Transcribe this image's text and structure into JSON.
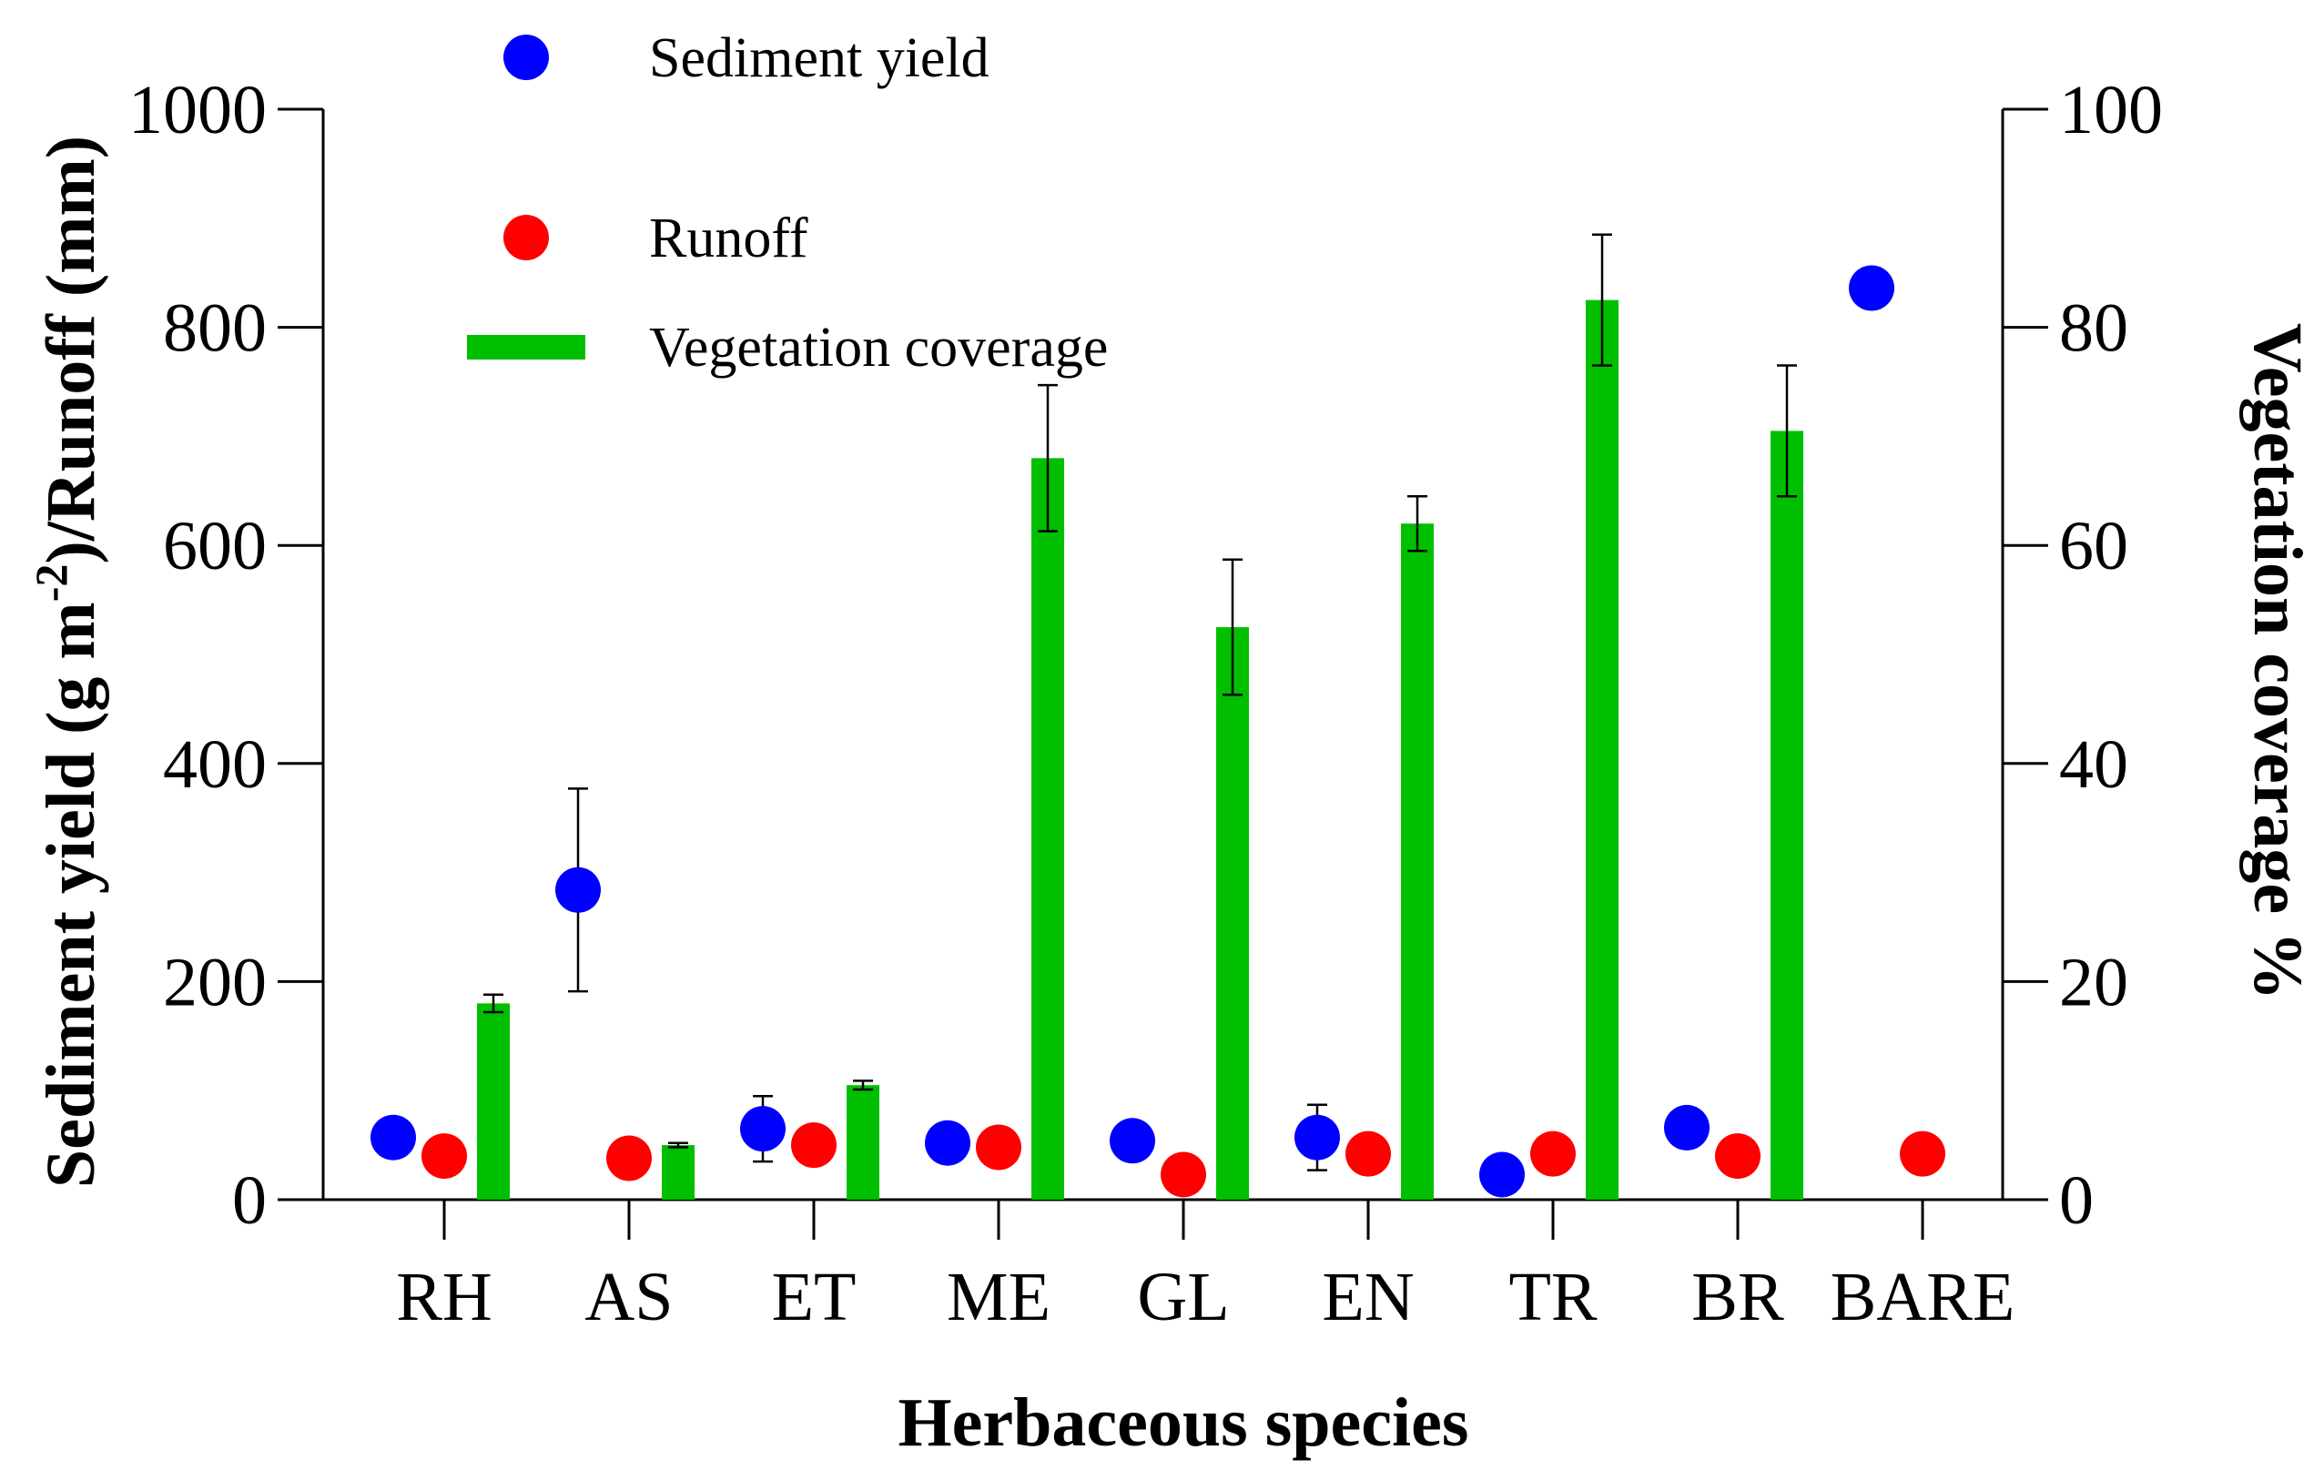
{
  "chart_data": {
    "type": "bar+scatter",
    "xlabel": "Herbaceous species",
    "ylabel_left": "Sediment yield (g m⁻²)/Runoff (mm)",
    "ylabel_right": "Vegetation coverage %",
    "ylim_left": [
      0,
      1000
    ],
    "ylim_right": [
      0,
      100
    ],
    "yticks_left": [
      0,
      200,
      400,
      600,
      800,
      1000
    ],
    "yticks_right": [
      0,
      20,
      40,
      60,
      80,
      100
    ],
    "categories": [
      "RH",
      "AS",
      "ET",
      "ME",
      "GL",
      "EN",
      "TR",
      "BR",
      "BARE"
    ],
    "series": [
      {
        "name": "Sediment yield",
        "kind": "point",
        "axis": "left",
        "color": "#0000ff",
        "values": [
          57,
          284,
          65,
          52,
          54,
          57,
          23,
          66,
          836
        ],
        "errors": [
          null,
          93,
          30,
          null,
          null,
          30,
          null,
          18,
          18
        ]
      },
      {
        "name": "Runoff",
        "kind": "point",
        "axis": "left",
        "color": "#ff0000",
        "values": [
          40,
          38,
          50,
          48,
          23,
          42,
          42,
          40,
          42
        ],
        "errors": [
          null,
          null,
          null,
          null,
          12,
          null,
          null,
          null,
          null
        ]
      },
      {
        "name": "Vegetation coverage",
        "kind": "bar",
        "axis": "right",
        "color": "#00bf00",
        "values": [
          18,
          5,
          10.5,
          68,
          52.5,
          62,
          82.5,
          70.5,
          null
        ],
        "errors": [
          0.8,
          0.2,
          0.4,
          6.7,
          6.2,
          2.5,
          6,
          6,
          null
        ]
      }
    ],
    "legend": {
      "position": "top-left",
      "items": [
        "Sediment yield",
        "Runoff",
        "Vegetation coverage"
      ]
    }
  }
}
